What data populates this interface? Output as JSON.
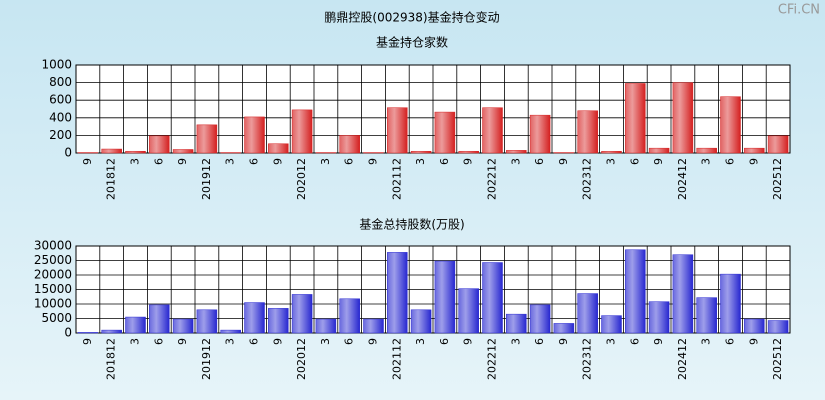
{
  "title": "鹏鼎控股(002938)基金持仓变动",
  "watermark": "CFi.CN",
  "chart_data": [
    {
      "type": "bar",
      "title": "基金持仓家数",
      "categories": [
        "9",
        "201812",
        "3",
        "6",
        "9",
        "201912",
        "3",
        "6",
        "9",
        "202012",
        "3",
        "6",
        "9",
        "202112",
        "3",
        "6",
        "9",
        "202212",
        "3",
        "6",
        "9",
        "202312",
        "3",
        "6",
        "9",
        "202412",
        "3",
        "6",
        "9",
        "202512"
      ],
      "values": [
        5,
        45,
        20,
        195,
        40,
        320,
        5,
        410,
        105,
        490,
        5,
        200,
        5,
        515,
        20,
        465,
        20,
        515,
        30,
        430,
        5,
        480,
        20,
        790,
        55,
        800,
        55,
        640,
        55,
        195
      ],
      "color": "#d42020",
      "ylim": [
        0,
        1000
      ],
      "yticks": [
        0,
        200,
        400,
        600,
        800,
        1000
      ],
      "grid": true
    },
    {
      "type": "bar",
      "title": "基金总持股数(万股)",
      "categories": [
        "9",
        "201812",
        "3",
        "6",
        "9",
        "201912",
        "3",
        "6",
        "9",
        "202012",
        "3",
        "6",
        "9",
        "202112",
        "3",
        "6",
        "9",
        "202212",
        "3",
        "6",
        "9",
        "202312",
        "3",
        "6",
        "9",
        "202412",
        "3",
        "6",
        "9",
        "202512"
      ],
      "values": [
        200,
        1000,
        5500,
        9700,
        4800,
        8000,
        1000,
        10500,
        8500,
        13300,
        4800,
        11800,
        4800,
        27800,
        8000,
        24800,
        15300,
        24300,
        6500,
        9700,
        3300,
        13600,
        6000,
        28700,
        10800,
        27000,
        12200,
        20300,
        4800,
        4300
      ],
      "color": "#2828d0",
      "ylim": [
        0,
        30000
      ],
      "yticks": [
        0,
        5000,
        10000,
        15000,
        20000,
        25000,
        30000
      ],
      "grid": true
    }
  ]
}
